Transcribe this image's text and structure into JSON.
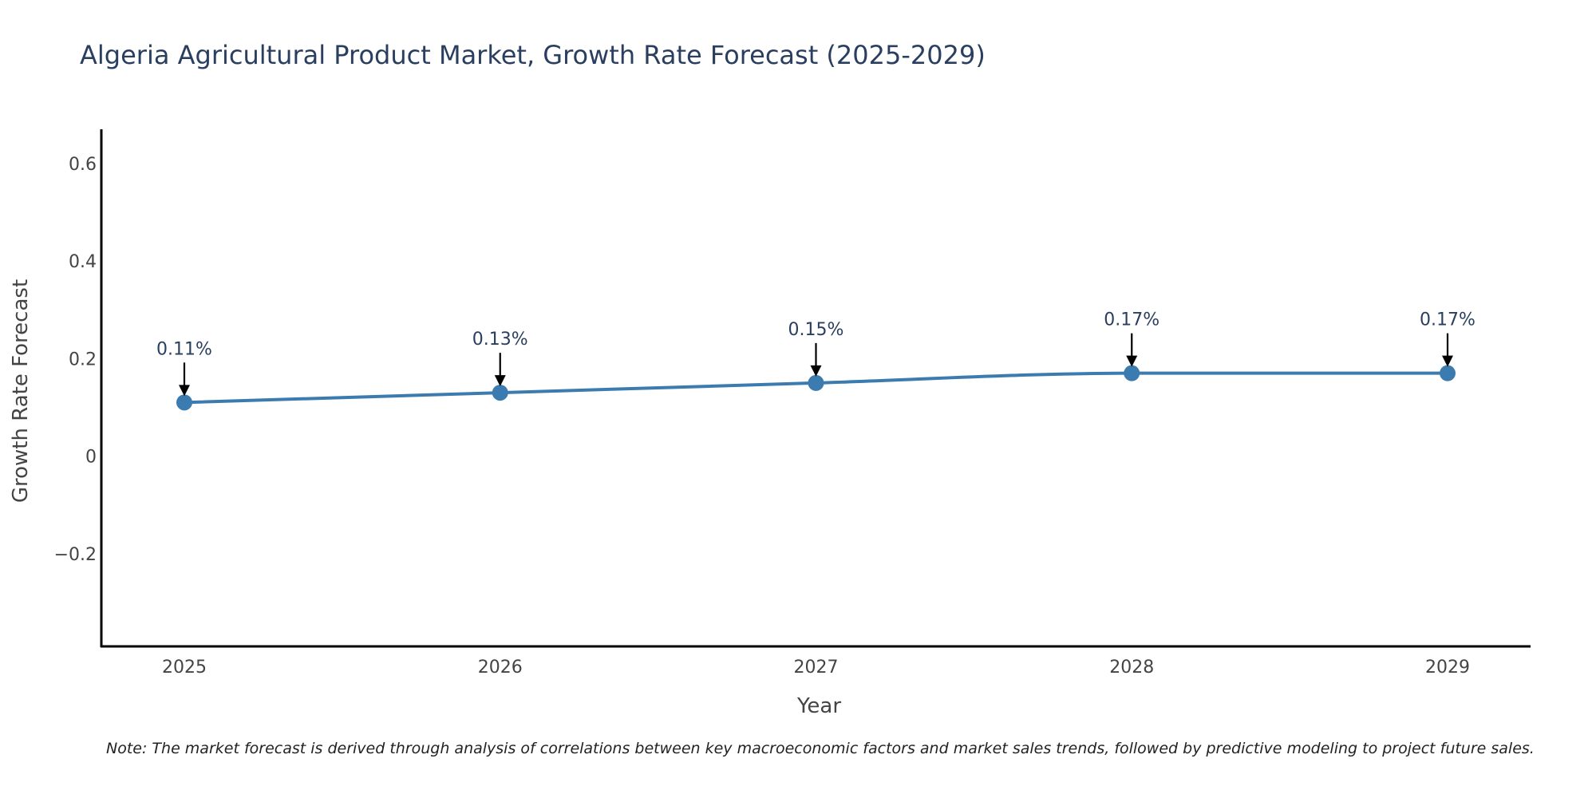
{
  "chart_data": {
    "type": "line",
    "title": "Algeria Agricultural Product Market, Growth Rate Forecast (2025-2029)",
    "xlabel": "Year",
    "ylabel": "Growth Rate Forecast",
    "categories": [
      "2025",
      "2026",
      "2027",
      "2028",
      "2029"
    ],
    "series": [
      {
        "name": "Growth Rate Forecast",
        "values": [
          0.11,
          0.13,
          0.15,
          0.17,
          0.17
        ],
        "labels": [
          "0.11%",
          "0.13%",
          "0.15%",
          "0.17%",
          "0.17%"
        ],
        "color": "#3b7bb0"
      }
    ],
    "ylim": [
      -0.39,
      0.67
    ],
    "yticks": [
      -0.2,
      0,
      0.2,
      0.4,
      0.6
    ],
    "ytick_labels": [
      "−0.2",
      "0",
      "0.2",
      "0.4",
      "0.6"
    ],
    "grid": false,
    "note": "Note: The market forecast is derived through analysis of correlations between key macroeconomic factors and market sales trends, followed by predictive modeling to project future sales."
  },
  "colors": {
    "title": "#2a3f5f",
    "axis": "#000000",
    "tick_text": "#444444",
    "line": "#3b7bb0",
    "annotation_arrow": "#000000"
  }
}
